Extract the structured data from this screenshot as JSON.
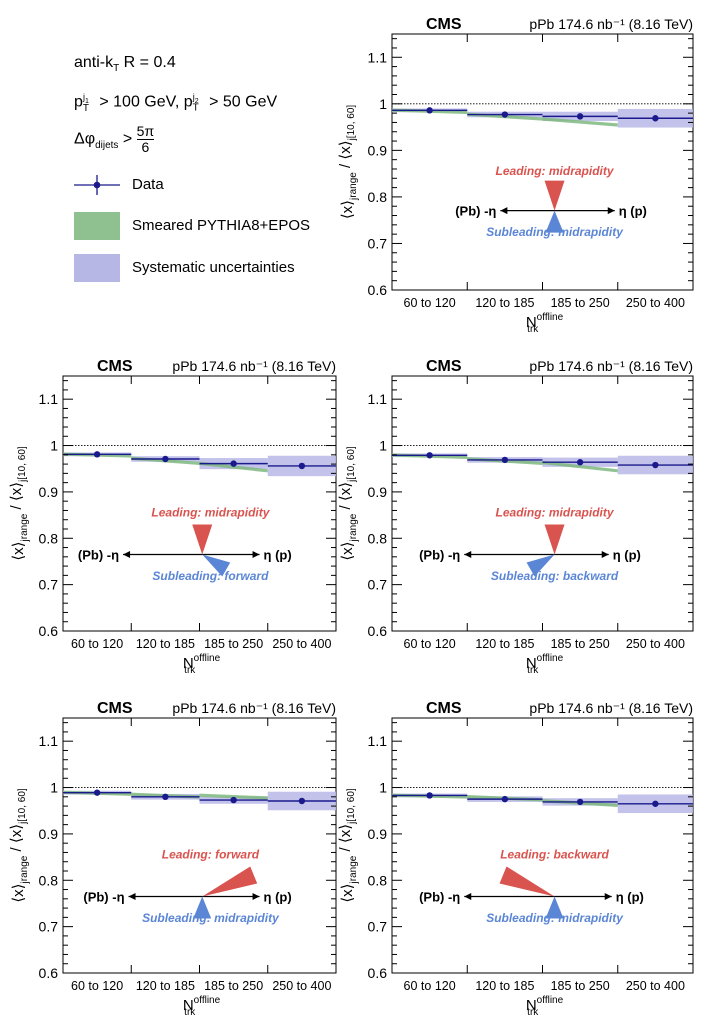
{
  "legend": {
    "algo": "anti-kT R = 0.4",
    "pt_cut": "pT j1 > 100 GeV, pT j2 > 50 GeV",
    "dphi_cut": "Δφ dijets > 5π/6",
    "entries": [
      {
        "label": "Data",
        "color": "#1a1a8c"
      },
      {
        "label": "Smeared PYTHIA8+EPOS",
        "color": "#8fc08f"
      },
      {
        "label": "Systematic uncertainties",
        "color": "#b7b7e6"
      }
    ]
  },
  "common": {
    "experiment": "CMS",
    "lumi": "pPb 174.6 nb⁻¹ (8.16 TeV)",
    "ylabel": "⟨x⟩j range / ⟨x⟩j [10, 60]",
    "xlabel": "N trk offline",
    "data_color": "#1a1a8c",
    "mc_color": "#6aaa6a",
    "syst_color": "#b7b7e6",
    "leading_color": "#d9534f",
    "subleading_color": "#5b86d6",
    "eta_left": "(Pb) -η",
    "eta_right": "η (p)"
  },
  "chart_data": [
    {
      "type": "scatter",
      "panel": "leading-midrapidity_subleading-midrapidity",
      "categories": [
        "60 to 120",
        "120 to 185",
        "185 to 250",
        "250 to 400"
      ],
      "values": [
        0.986,
        0.977,
        0.973,
        0.969
      ],
      "syst": [
        0.004,
        0.006,
        0.01,
        0.02
      ],
      "mc_band": [
        [
          0.987,
          0.982
        ],
        [
          0.978,
          0.968
        ],
        [
          0.968,
          0.955
        ]
      ],
      "ylim": [
        0.6,
        1.15
      ],
      "yticks": [
        0.6,
        0.7,
        0.8,
        0.9,
        1,
        1.1
      ],
      "reference_line": 1,
      "leading_label": "Leading: midrapidity",
      "subleading_label": "Subleading: midrapidity"
    },
    {
      "type": "scatter",
      "panel": "leading-midrapidity_subleading-forward",
      "categories": [
        "60 to 120",
        "120 to 185",
        "185 to 250",
        "250 to 400"
      ],
      "values": [
        0.981,
        0.971,
        0.961,
        0.956
      ],
      "syst": [
        0.004,
        0.006,
        0.012,
        0.022
      ],
      "mc_band": [
        [
          0.982,
          0.978
        ],
        [
          0.973,
          0.962
        ],
        [
          0.962,
          0.946
        ]
      ],
      "ylim": [
        0.6,
        1.15
      ],
      "yticks": [
        0.6,
        0.7,
        0.8,
        0.9,
        1,
        1.1
      ],
      "reference_line": 1,
      "leading_label": "Leading: midrapidity",
      "subleading_label": "Subleading: forward"
    },
    {
      "type": "scatter",
      "panel": "leading-midrapidity_subleading-backward",
      "categories": [
        "60 to 120",
        "120 to 185",
        "185 to 250",
        "250 to 400"
      ],
      "values": [
        0.979,
        0.969,
        0.964,
        0.958
      ],
      "syst": [
        0.004,
        0.006,
        0.01,
        0.02
      ],
      "mc_band": [
        [
          0.98,
          0.975
        ],
        [
          0.972,
          0.962
        ],
        [
          0.964,
          0.946
        ]
      ],
      "ylim": [
        0.6,
        1.15
      ],
      "yticks": [
        0.6,
        0.7,
        0.8,
        0.9,
        1,
        1.1
      ],
      "reference_line": 1,
      "leading_label": "Leading: midrapidity",
      "subleading_label": "Subleading: backward"
    },
    {
      "type": "scatter",
      "panel": "leading-forward_subleading-midrapidity",
      "categories": [
        "60 to 120",
        "120 to 185",
        "185 to 250",
        "250 to 400"
      ],
      "values": [
        0.989,
        0.98,
        0.973,
        0.971
      ],
      "syst": [
        0.004,
        0.006,
        0.008,
        0.02
      ],
      "mc_band": [
        [
          0.99,
          0.986
        ],
        [
          0.986,
          0.98
        ],
        [
          0.984,
          0.978
        ]
      ],
      "ylim": [
        0.6,
        1.15
      ],
      "yticks": [
        0.6,
        0.7,
        0.8,
        0.9,
        1,
        1.1
      ],
      "reference_line": 1,
      "leading_label": "Leading: forward",
      "subleading_label": "Subleading: midrapidity"
    },
    {
      "type": "scatter",
      "panel": "leading-backward_subleading-midrapidity",
      "categories": [
        "60 to 120",
        "120 to 185",
        "185 to 250",
        "250 to 400"
      ],
      "values": [
        0.983,
        0.975,
        0.969,
        0.965
      ],
      "syst": [
        0.004,
        0.006,
        0.008,
        0.02
      ],
      "mc_band": [
        [
          0.984,
          0.98
        ],
        [
          0.981,
          0.974
        ],
        [
          0.972,
          0.962
        ]
      ],
      "ylim": [
        0.6,
        1.15
      ],
      "yticks": [
        0.6,
        0.7,
        0.8,
        0.9,
        1,
        1.1
      ],
      "reference_line": 1,
      "leading_label": "Leading: backward",
      "subleading_label": "Subleading: midrapidity"
    }
  ]
}
